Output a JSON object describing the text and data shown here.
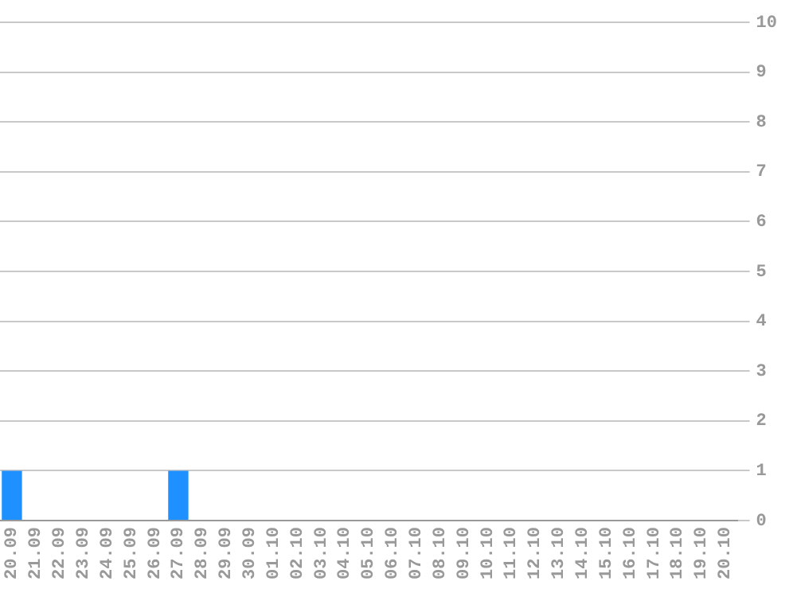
{
  "chart_data": {
    "type": "bar",
    "categories": [
      "20.09",
      "21.09",
      "22.09",
      "23.09",
      "24.09",
      "25.09",
      "26.09",
      "27.09",
      "28.09",
      "29.09",
      "30.09",
      "01.10",
      "02.10",
      "03.10",
      "04.10",
      "05.10",
      "06.10",
      "07.10",
      "08.10",
      "09.10",
      "10.10",
      "11.10",
      "12.10",
      "13.10",
      "14.10",
      "15.10",
      "16.10",
      "17.10",
      "18.10",
      "19.10",
      "20.10"
    ],
    "values": [
      1,
      0,
      0,
      0,
      0,
      0,
      0,
      1,
      0,
      0,
      0,
      0,
      0,
      0,
      0,
      0,
      0,
      0,
      0,
      0,
      0,
      0,
      0,
      0,
      0,
      0,
      0,
      0,
      0,
      0,
      0
    ],
    "color": "#1e90ff",
    "ylim": [
      0,
      10
    ],
    "yticks": [
      0,
      1,
      2,
      3,
      4,
      5,
      6,
      7,
      8,
      9,
      10
    ],
    "grid": "y",
    "legend": false
  }
}
